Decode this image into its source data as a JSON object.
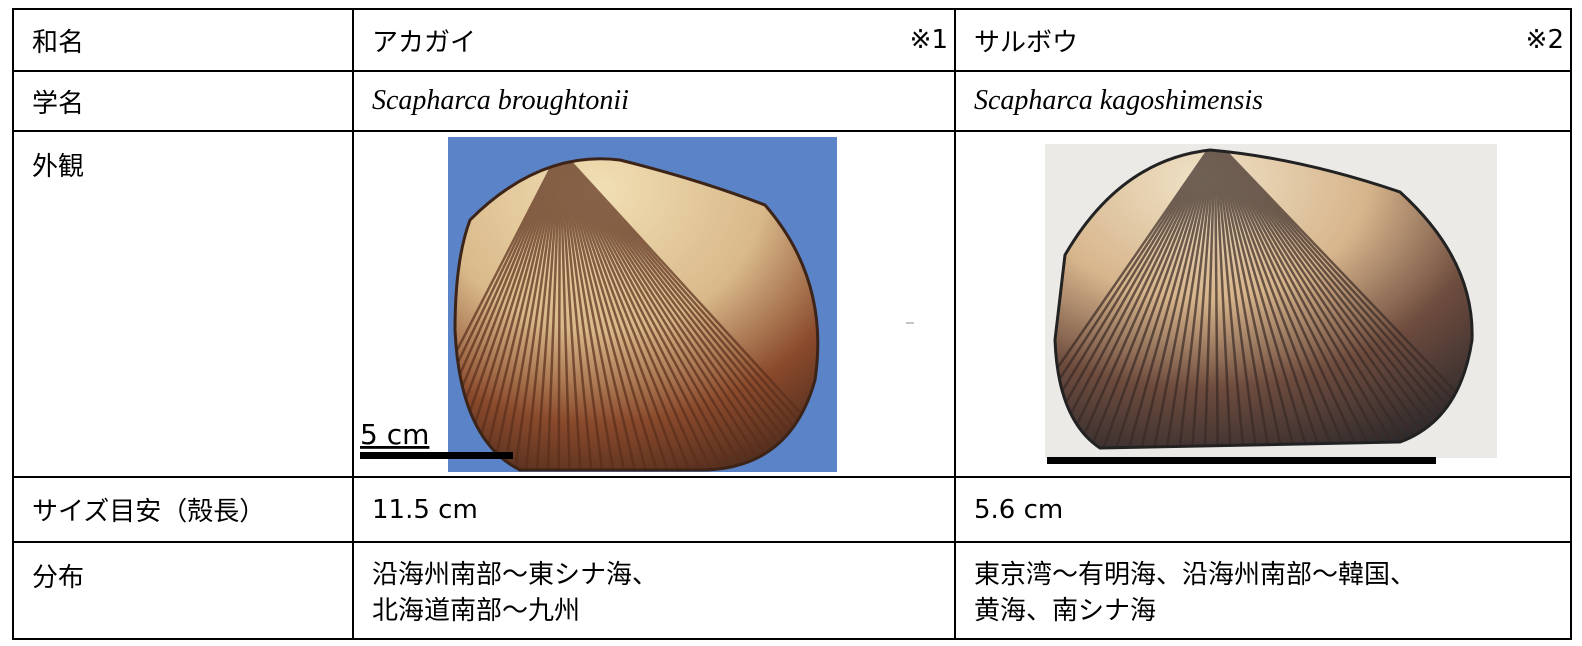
{
  "table": {
    "rows": [
      [
        "和名",
        "アカガイ",
        "サルボウ"
      ],
      [
        "学名",
        "Scapharca broughtonii",
        "Scapharca kagoshimensis"
      ],
      [
        "外観"
      ],
      [
        "サイズ目安（殻長）",
        "11.5 cm",
        "5.6 cm"
      ],
      [
        "分布",
        "沿海州南部～東シナ海、\n北海道南部～九州",
        "東京湾～有明海、沿海州南部～韓国、\n黄海、南シナ海"
      ]
    ],
    "notes": [
      "※1",
      "※2"
    ],
    "scale_label": "5 cm"
  }
}
